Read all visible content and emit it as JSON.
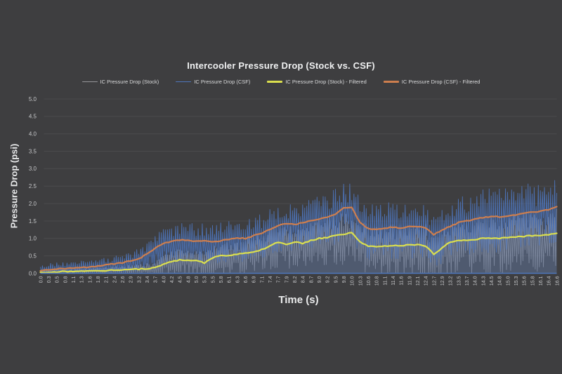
{
  "chart": {
    "background": "#3e3e40",
    "grid_color": "#4b4b4d",
    "axis_line_color": "#4e76bc",
    "title_color": "#eff0f1",
    "tick_label_color": "#c6c7c9",
    "legend_text_color": "#d9dadb"
  },
  "chart_data": {
    "type": "line",
    "title": "Intercooler Pressure Drop (Stock vs. CSF)",
    "xlabel": "Time (s)",
    "ylabel": "Pressure Drop (psi)",
    "ylim": [
      0,
      5
    ],
    "ytick_step": 0.5,
    "yticks": [
      "0.0",
      "0.5",
      "1.0",
      "1.5",
      "2.0",
      "2.5",
      "3.0",
      "3.5",
      "4.0",
      "4.5",
      "5.0"
    ],
    "grid": "horizontal",
    "legend_position": "top",
    "categories": [
      "0.0",
      "0.3",
      "0.5",
      "0.8",
      "1.1",
      "1.3",
      "1.6",
      "1.8",
      "2.1",
      "2.4",
      "2.6",
      "2.9",
      "3.2",
      "3.4",
      "3.7",
      "4.0",
      "4.2",
      "4.5",
      "4.8",
      "5.0",
      "5.3",
      "5.5",
      "5.8",
      "6.1",
      "6.3",
      "6.6",
      "6.9",
      "7.1",
      "7.4",
      "7.7",
      "7.9",
      "8.2",
      "8.4",
      "8.7",
      "9.0",
      "9.2",
      "9.5",
      "9.8",
      "10.0",
      "10.3",
      "10.6",
      "10.8",
      "11.1",
      "11.4",
      "11.6",
      "11.9",
      "12.1",
      "12.4",
      "12.7",
      "12.9",
      "13.2",
      "13.5",
      "13.7",
      "14.0",
      "14.3",
      "14.5",
      "14.8",
      "15.0",
      "15.3",
      "15.6",
      "15.8",
      "16.1",
      "16.4",
      "16.6"
    ],
    "series": [
      {
        "name": "IC Pressure Drop (Stock)",
        "style": "raw-noisy",
        "color": "#96969a",
        "fill": "rgba(150,150,154,0.20)",
        "values": [
          0.02,
          0.03,
          0.04,
          0.05,
          0.05,
          0.06,
          0.06,
          0.07,
          0.08,
          0.09,
          0.1,
          0.11,
          0.12,
          0.13,
          0.16,
          0.26,
          0.34,
          0.38,
          0.38,
          0.36,
          0.3,
          0.45,
          0.5,
          0.52,
          0.55,
          0.58,
          0.62,
          0.68,
          0.78,
          0.9,
          0.82,
          0.9,
          0.86,
          0.94,
          1.0,
          1.03,
          1.08,
          1.12,
          1.16,
          0.9,
          0.78,
          0.76,
          0.78,
          0.8,
          0.78,
          0.82,
          0.82,
          0.78,
          0.55,
          0.72,
          0.9,
          0.94,
          0.94,
          0.97,
          1.0,
          1.0,
          1.0,
          1.02,
          1.04,
          1.06,
          1.08,
          1.08,
          1.1,
          1.15
        ],
        "noise_band": [
          0.07,
          0.07,
          0.08,
          0.08,
          0.08,
          0.09,
          0.09,
          0.1,
          0.1,
          0.11,
          0.12,
          0.13,
          0.14,
          0.16,
          0.2,
          0.26,
          0.3,
          0.32,
          0.32,
          0.32,
          0.34,
          0.36,
          0.38,
          0.4,
          0.42,
          0.44,
          0.46,
          0.48,
          0.5,
          0.52,
          0.52,
          0.54,
          0.54,
          0.56,
          0.58,
          0.6,
          0.62,
          0.64,
          0.64,
          0.62,
          0.62,
          0.62,
          0.62,
          0.64,
          0.64,
          0.64,
          0.64,
          0.64,
          0.66,
          0.68,
          0.7,
          0.7,
          0.7,
          0.72,
          0.72,
          0.74,
          0.74,
          0.74,
          0.75,
          0.75,
          0.76,
          0.76,
          0.76,
          0.76
        ]
      },
      {
        "name": "IC Pressure Drop (CSF)",
        "style": "raw-noisy",
        "color": "#4e76bc",
        "fill": "rgba(78,117,186,0.28)",
        "values": [
          0.06,
          0.1,
          0.12,
          0.14,
          0.15,
          0.16,
          0.18,
          0.2,
          0.24,
          0.27,
          0.3,
          0.36,
          0.42,
          0.55,
          0.72,
          0.85,
          0.92,
          0.95,
          0.95,
          0.92,
          0.95,
          0.89,
          0.93,
          0.98,
          1.02,
          1.0,
          1.08,
          1.15,
          1.25,
          1.38,
          1.42,
          1.4,
          1.45,
          1.52,
          1.55,
          1.6,
          1.7,
          1.88,
          1.9,
          1.45,
          1.28,
          1.26,
          1.3,
          1.32,
          1.3,
          1.35,
          1.35,
          1.3,
          1.1,
          1.25,
          1.35,
          1.45,
          1.5,
          1.55,
          1.6,
          1.62,
          1.62,
          1.65,
          1.68,
          1.72,
          1.75,
          1.78,
          1.82,
          1.9
        ],
        "noise_band": [
          0.18,
          0.18,
          0.2,
          0.2,
          0.2,
          0.22,
          0.22,
          0.22,
          0.24,
          0.24,
          0.26,
          0.28,
          0.3,
          0.34,
          0.38,
          0.45,
          0.48,
          0.5,
          0.5,
          0.5,
          0.52,
          0.52,
          0.54,
          0.54,
          0.55,
          0.55,
          0.58,
          0.58,
          0.6,
          0.62,
          0.62,
          0.62,
          0.64,
          0.66,
          0.68,
          0.7,
          0.75,
          0.8,
          0.78,
          0.72,
          0.72,
          0.72,
          0.72,
          0.74,
          0.74,
          0.74,
          0.74,
          0.74,
          0.76,
          0.78,
          0.78,
          0.78,
          0.78,
          0.8,
          0.82,
          0.82,
          0.82,
          0.82,
          0.84,
          0.84,
          0.84,
          0.85,
          0.85,
          0.85
        ]
      },
      {
        "name": "IC Pressure Drop (Stock) - Filtered",
        "style": "smooth",
        "color": "#dbdf4e",
        "values": [
          0.02,
          0.03,
          0.04,
          0.05,
          0.05,
          0.06,
          0.06,
          0.07,
          0.08,
          0.09,
          0.1,
          0.11,
          0.12,
          0.13,
          0.16,
          0.26,
          0.34,
          0.38,
          0.38,
          0.36,
          0.3,
          0.45,
          0.5,
          0.52,
          0.55,
          0.58,
          0.62,
          0.68,
          0.78,
          0.9,
          0.82,
          0.9,
          0.86,
          0.94,
          1.0,
          1.03,
          1.08,
          1.12,
          1.16,
          0.9,
          0.78,
          0.76,
          0.78,
          0.8,
          0.78,
          0.82,
          0.82,
          0.78,
          0.55,
          0.72,
          0.9,
          0.94,
          0.94,
          0.97,
          1.0,
          1.0,
          1.0,
          1.02,
          1.04,
          1.06,
          1.08,
          1.08,
          1.1,
          1.15
        ]
      },
      {
        "name": "IC Pressure Drop (CSF) - Filtered",
        "style": "smooth",
        "color": "#cd7e4e",
        "values": [
          0.06,
          0.1,
          0.12,
          0.14,
          0.15,
          0.16,
          0.18,
          0.2,
          0.24,
          0.27,
          0.3,
          0.36,
          0.42,
          0.55,
          0.72,
          0.85,
          0.92,
          0.95,
          0.95,
          0.92,
          0.95,
          0.89,
          0.93,
          0.98,
          1.02,
          1.0,
          1.08,
          1.15,
          1.25,
          1.38,
          1.42,
          1.4,
          1.45,
          1.52,
          1.55,
          1.6,
          1.7,
          1.88,
          1.9,
          1.45,
          1.28,
          1.26,
          1.3,
          1.32,
          1.3,
          1.35,
          1.35,
          1.3,
          1.1,
          1.25,
          1.35,
          1.45,
          1.5,
          1.55,
          1.6,
          1.62,
          1.62,
          1.65,
          1.68,
          1.72,
          1.75,
          1.78,
          1.82,
          1.9
        ]
      }
    ]
  }
}
